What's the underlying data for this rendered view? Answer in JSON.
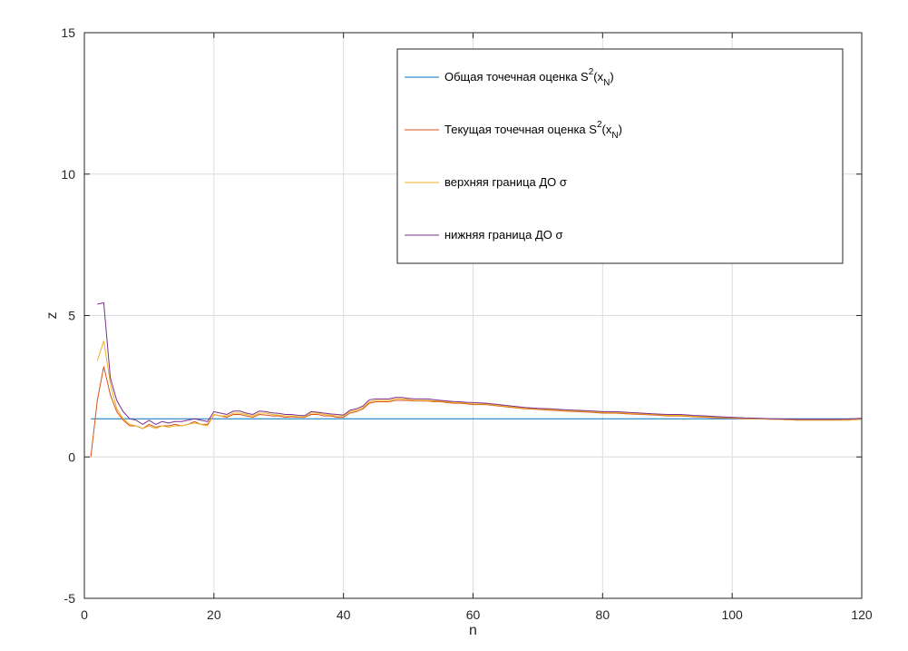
{
  "chart_data": {
    "type": "line",
    "xlabel": "n",
    "ylabel": "z",
    "xlim": [
      0,
      120
    ],
    "ylim": [
      -5,
      15
    ],
    "xticks": [
      "0",
      "20",
      "40",
      "60",
      "80",
      "100",
      "120"
    ],
    "yticks": [
      "-5",
      "0",
      "5",
      "10",
      "15"
    ],
    "grid": true,
    "legend_position": "top-right",
    "series": [
      {
        "name": "Общая точечная оценка",
        "name_math": "S2(xN)",
        "color": "#0072bd",
        "x": [
          1,
          120
        ],
        "y": [
          1.35,
          1.35
        ]
      },
      {
        "name": "Текущая точечная оценка",
        "name_math": "S2(xN)",
        "color": "#d95319",
        "x": [
          1,
          2,
          3,
          4,
          5,
          6,
          7,
          8,
          9,
          10,
          11,
          12,
          13,
          14,
          15,
          16,
          17,
          18,
          19,
          20,
          21,
          22,
          23,
          24,
          25,
          26,
          27,
          28,
          29,
          30,
          31,
          32,
          33,
          34,
          35,
          36,
          37,
          38,
          39,
          40,
          41,
          42,
          43,
          44,
          45,
          46,
          47,
          48,
          49,
          50,
          51,
          52,
          53,
          54,
          55,
          56,
          57,
          58,
          59,
          60,
          62,
          64,
          66,
          68,
          70,
          72,
          74,
          76,
          78,
          80,
          82,
          84,
          86,
          88,
          90,
          92,
          94,
          96,
          98,
          100,
          102,
          104,
          106,
          108,
          110,
          112,
          114,
          116,
          118,
          120
        ],
        "y": [
          0,
          2.0,
          3.2,
          2.2,
          1.6,
          1.3,
          1.1,
          1.1,
          1.0,
          1.15,
          1.05,
          1.1,
          1.1,
          1.15,
          1.1,
          1.15,
          1.25,
          1.15,
          1.15,
          1.5,
          1.45,
          1.4,
          1.5,
          1.5,
          1.45,
          1.4,
          1.5,
          1.48,
          1.45,
          1.45,
          1.4,
          1.42,
          1.4,
          1.4,
          1.5,
          1.5,
          1.45,
          1.45,
          1.4,
          1.4,
          1.55,
          1.6,
          1.7,
          1.9,
          1.95,
          1.95,
          1.95,
          2.0,
          2.0,
          2.0,
          1.98,
          1.98,
          1.98,
          1.95,
          1.95,
          1.92,
          1.9,
          1.9,
          1.88,
          1.85,
          1.85,
          1.8,
          1.75,
          1.7,
          1.68,
          1.65,
          1.62,
          1.6,
          1.58,
          1.55,
          1.55,
          1.52,
          1.5,
          1.48,
          1.45,
          1.45,
          1.42,
          1.4,
          1.38,
          1.37,
          1.35,
          1.35,
          1.33,
          1.32,
          1.3,
          1.3,
          1.3,
          1.3,
          1.3,
          1.33
        ]
      },
      {
        "name": "верхняя граница ДО σ",
        "color": "#edb120",
        "x": [
          2,
          3,
          4,
          5,
          6,
          7,
          8,
          9,
          10,
          11,
          12,
          13,
          14,
          15,
          16,
          17,
          18,
          19,
          20,
          21,
          22,
          23,
          24,
          25,
          26,
          27,
          28,
          29,
          30,
          31,
          32,
          33,
          34,
          35,
          36,
          37,
          38,
          39,
          40,
          41,
          42,
          43,
          44,
          45,
          46,
          47,
          48,
          49,
          50,
          51,
          52,
          53,
          54,
          55,
          56,
          57,
          58,
          59,
          60,
          62,
          64,
          66,
          68,
          70,
          72,
          74,
          76,
          78,
          80,
          82,
          84,
          86,
          88,
          90,
          92,
          94,
          96,
          98,
          100,
          102,
          104,
          106,
          108,
          110,
          112,
          114,
          116,
          118,
          120
        ],
        "y": [
          3.4,
          4.1,
          2.6,
          1.7,
          1.35,
          1.15,
          1.1,
          1.0,
          1.1,
          1.0,
          1.1,
          1.05,
          1.1,
          1.1,
          1.15,
          1.2,
          1.15,
          1.1,
          1.5,
          1.45,
          1.45,
          1.55,
          1.55,
          1.5,
          1.45,
          1.55,
          1.55,
          1.5,
          1.48,
          1.45,
          1.45,
          1.42,
          1.42,
          1.55,
          1.55,
          1.5,
          1.48,
          1.45,
          1.45,
          1.6,
          1.65,
          1.75,
          1.95,
          2.0,
          2.0,
          2.0,
          2.05,
          2.05,
          2.03,
          2.0,
          2.0,
          2.0,
          1.98,
          1.97,
          1.95,
          1.92,
          1.92,
          1.9,
          1.88,
          1.87,
          1.82,
          1.77,
          1.72,
          1.7,
          1.67,
          1.64,
          1.62,
          1.6,
          1.57,
          1.57,
          1.54,
          1.52,
          1.5,
          1.47,
          1.47,
          1.44,
          1.42,
          1.4,
          1.38,
          1.36,
          1.35,
          1.33,
          1.32,
          1.3,
          1.3,
          1.3,
          1.3,
          1.3,
          1.33
        ]
      },
      {
        "name": "нижняя граница ДО σ",
        "color": "#7e2f8e",
        "x": [
          2,
          3,
          4,
          5,
          6,
          7,
          8,
          9,
          10,
          11,
          12,
          13,
          14,
          15,
          16,
          17,
          18,
          19,
          20,
          21,
          22,
          23,
          24,
          25,
          26,
          27,
          28,
          29,
          30,
          31,
          32,
          33,
          34,
          35,
          36,
          37,
          38,
          39,
          40,
          41,
          42,
          43,
          44,
          45,
          46,
          47,
          48,
          49,
          50,
          51,
          52,
          53,
          54,
          55,
          56,
          57,
          58,
          59,
          60,
          62,
          64,
          66,
          68,
          70,
          72,
          74,
          76,
          78,
          80,
          82,
          84,
          86,
          88,
          90,
          92,
          94,
          96,
          98,
          100,
          102,
          104,
          106,
          108,
          110,
          112,
          114,
          116,
          118,
          120
        ],
        "y": [
          5.4,
          5.45,
          2.8,
          2.0,
          1.6,
          1.35,
          1.3,
          1.15,
          1.3,
          1.15,
          1.25,
          1.2,
          1.25,
          1.25,
          1.3,
          1.35,
          1.3,
          1.25,
          1.6,
          1.55,
          1.5,
          1.62,
          1.62,
          1.55,
          1.5,
          1.62,
          1.6,
          1.56,
          1.54,
          1.5,
          1.5,
          1.47,
          1.46,
          1.6,
          1.58,
          1.55,
          1.52,
          1.5,
          1.48,
          1.65,
          1.7,
          1.8,
          2.02,
          2.05,
          2.05,
          2.05,
          2.1,
          2.1,
          2.07,
          2.05,
          2.05,
          2.05,
          2.02,
          2.0,
          1.98,
          1.96,
          1.95,
          1.93,
          1.92,
          1.9,
          1.85,
          1.8,
          1.75,
          1.72,
          1.7,
          1.67,
          1.65,
          1.63,
          1.6,
          1.6,
          1.57,
          1.55,
          1.52,
          1.5,
          1.5,
          1.47,
          1.45,
          1.42,
          1.4,
          1.38,
          1.37,
          1.35,
          1.34,
          1.33,
          1.33,
          1.33,
          1.33,
          1.34,
          1.37
        ]
      }
    ]
  }
}
